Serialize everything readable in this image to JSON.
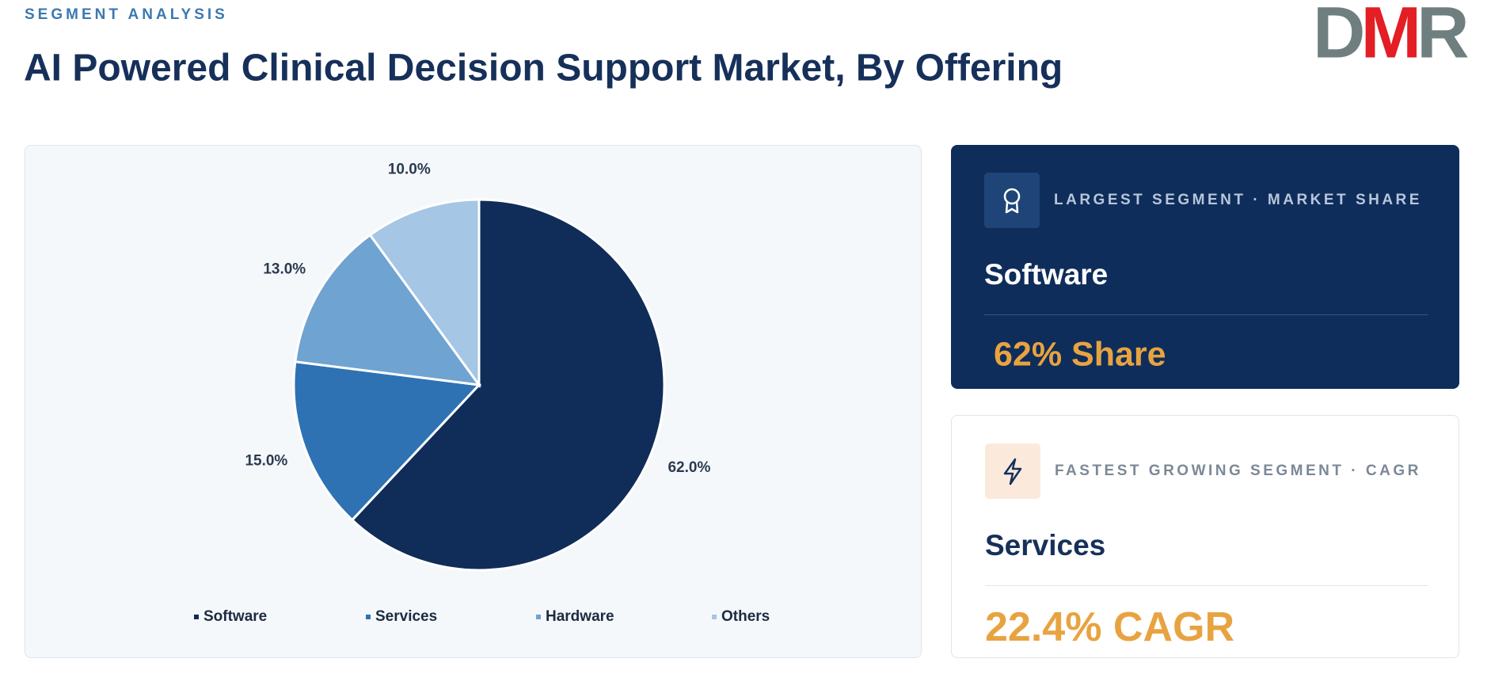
{
  "header": {
    "eyebrow": "SEGMENT ANALYSIS",
    "title": "AI Powered Clinical Decision Support Market, By Offering",
    "logo": [
      "D",
      "M",
      "R"
    ]
  },
  "chart_data": {
    "type": "pie",
    "categories": [
      "Software",
      "Services",
      "Hardware",
      "Others"
    ],
    "values": [
      62,
      15,
      13,
      10
    ],
    "value_labels": [
      "62.0%",
      "15.0%",
      "13.0%",
      "10.0%"
    ],
    "colors": [
      "#102c59",
      "#2e72b3",
      "#6fa3d2",
      "#a5c6e4"
    ],
    "legend": "bottom"
  },
  "cards": [
    {
      "label": "LARGEST SEGMENT · MARKET SHARE",
      "name": "Software",
      "value": "62% Share"
    },
    {
      "label": "FASTEST GROWING SEGMENT · CAGR",
      "name": "Services",
      "value": "22.4% CAGR"
    }
  ]
}
